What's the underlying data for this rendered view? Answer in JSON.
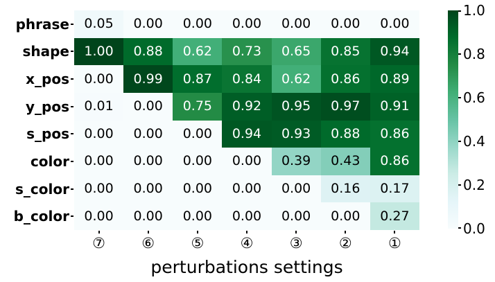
{
  "chart_data": {
    "type": "heatmap",
    "xlabel": "perturbations settings",
    "rows": [
      "phrase",
      "shape",
      "x_pos",
      "y_pos",
      "s_pos",
      "color",
      "s_color",
      "b_color"
    ],
    "columns": [
      "⑦",
      "⑥",
      "⑤",
      "④",
      "③",
      "②",
      "①"
    ],
    "values": [
      [
        0.05,
        0.0,
        0.0,
        0.0,
        0.0,
        0.0,
        0.0
      ],
      [
        1.0,
        0.88,
        0.62,
        0.73,
        0.65,
        0.85,
        0.94
      ],
      [
        0.0,
        0.99,
        0.87,
        0.84,
        0.62,
        0.86,
        0.89
      ],
      [
        0.01,
        0.0,
        0.75,
        0.92,
        0.95,
        0.97,
        0.91
      ],
      [
        0.0,
        0.0,
        0.0,
        0.94,
        0.93,
        0.88,
        0.86
      ],
      [
        0.0,
        0.0,
        0.0,
        0.0,
        0.39,
        0.43,
        0.86
      ],
      [
        0.0,
        0.0,
        0.0,
        0.0,
        0.0,
        0.16,
        0.17
      ],
      [
        0.0,
        0.0,
        0.0,
        0.0,
        0.0,
        0.0,
        0.27
      ]
    ],
    "value_decimals": 2,
    "vmin": 0.0,
    "vmax": 1.0,
    "colormap": "BuGn",
    "colormap_stops": [
      "#f7fcfd",
      "#e5f5f9",
      "#ccece6",
      "#99d8c9",
      "#66c2a4",
      "#41ae76",
      "#238b45",
      "#006d2c",
      "#00441b"
    ],
    "annotation_colors": {
      "on_light": "#000000",
      "on_dark": "#ffffff"
    },
    "colorbar": {
      "tick_labels": [
        "1.0",
        "0.8",
        "0.6",
        "0.4",
        "0.2",
        "0.0"
      ],
      "position": "right"
    },
    "grid": false,
    "legend": false
  }
}
